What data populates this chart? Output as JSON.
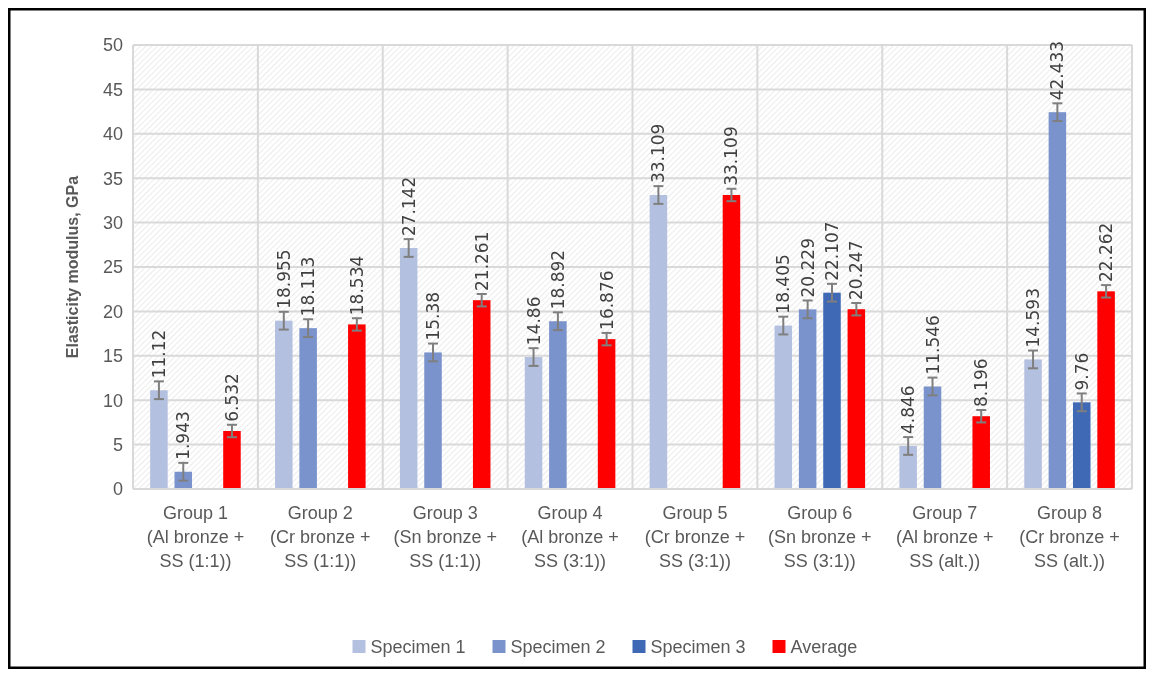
{
  "chart_data": {
    "type": "bar",
    "ylabel": "Elasticity modulus, GPa",
    "categories": [
      "Group 1\n(Al bronze +\nSS (1:1))",
      "Group 2\n(Cr bronze +\nSS (1:1))",
      "Group 3\n(Sn bronze +\nSS (1:1))",
      "Group 4\n(Al bronze +\nSS (3:1))",
      "Group 5\n(Cr bronze +\nSS (3:1))",
      "Group 6\n(Sn bronze +\nSS (3:1))",
      "Group 7\n(Al bronze +\nSS (alt.))",
      "Group 8\n(Cr bronze +\nSS (alt.))"
    ],
    "series": [
      {
        "name": "Specimen 1",
        "color": "#b4c0df",
        "values": [
          11.12,
          18.955,
          27.142,
          14.86,
          33.109,
          18.405,
          4.846,
          14.593
        ],
        "errors": [
          1,
          1,
          1,
          1,
          1,
          1,
          1,
          1
        ]
      },
      {
        "name": "Specimen 2",
        "color": "#7a93cc",
        "values": [
          1.943,
          18.113,
          15.38,
          18.892,
          null,
          20.229,
          11.546,
          42.433
        ],
        "errors": [
          1,
          1,
          1,
          1,
          null,
          1,
          1,
          1
        ]
      },
      {
        "name": "Specimen 3",
        "color": "#3f69b5",
        "values": [
          null,
          null,
          null,
          null,
          null,
          22.107,
          null,
          9.76
        ],
        "errors": [
          null,
          null,
          null,
          null,
          null,
          1,
          null,
          1
        ]
      },
      {
        "name": "Average",
        "color": "#ff0000",
        "values": [
          6.532,
          18.534,
          21.261,
          16.876,
          33.109,
          20.247,
          8.196,
          22.262
        ],
        "errors": [
          0.7,
          0.7,
          0.7,
          0.7,
          0.7,
          0.7,
          0.7,
          0.7
        ]
      }
    ],
    "ylim": [
      0,
      50
    ],
    "yticks": [
      0,
      5,
      10,
      15,
      20,
      25,
      30,
      35,
      40,
      45,
      50
    ],
    "grid": true,
    "legend": "bottom",
    "data_labels": true
  }
}
